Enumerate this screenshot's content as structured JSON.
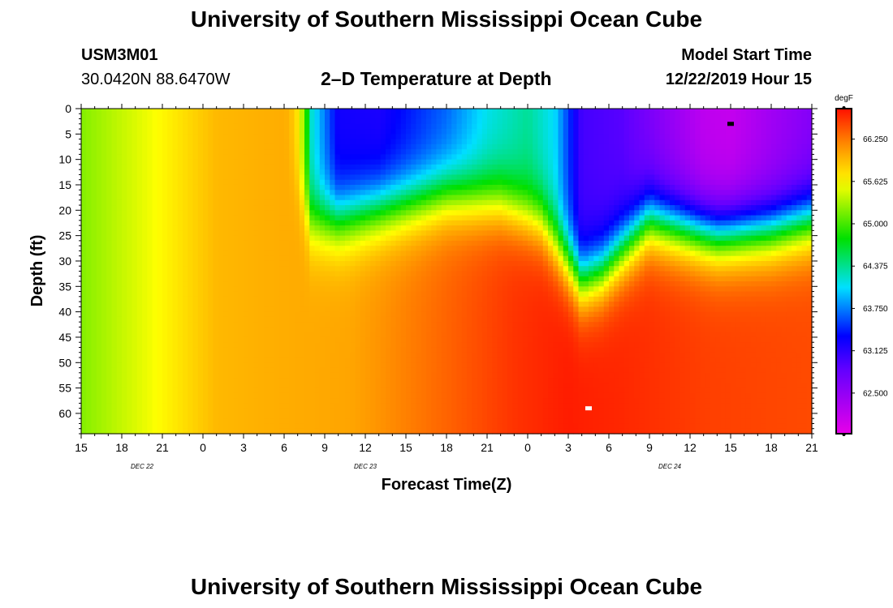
{
  "header": {
    "title_top": "University of Southern Mississippi Ocean Cube",
    "title_bottom": "University of Southern Mississippi Ocean Cube",
    "station_id": "USM3M01",
    "coordinates": "30.0420N 88.6470W",
    "plot_title": "2–D Temperature at Depth",
    "model_start_label": "Model Start Time",
    "model_start_value": "12/22/2019 Hour 15"
  },
  "chart_data": {
    "type": "heatmap",
    "title": "2-D Temperature at Depth",
    "xlabel": "Forecast Time(Z)",
    "ylabel": "Depth (ft)",
    "x_tick_labels": [
      "15",
      "18",
      "21",
      "0",
      "3",
      "6",
      "9",
      "12",
      "15",
      "18",
      "21",
      "0",
      "3",
      "6",
      "9",
      "12",
      "15",
      "18",
      "21"
    ],
    "x_hours": [
      0,
      3,
      6,
      9,
      12,
      15,
      18,
      21,
      24,
      27,
      30,
      33,
      36,
      39,
      42,
      45,
      48,
      51,
      54
    ],
    "date_labels": [
      {
        "text": "DEC 22",
        "hour": 4.5
      },
      {
        "text": "DEC 23",
        "hour": 21
      },
      {
        "text": "DEC 24",
        "hour": 43.5
      }
    ],
    "y_ticks": [
      0,
      5,
      10,
      15,
      20,
      25,
      30,
      35,
      40,
      45,
      50,
      55,
      60
    ],
    "y_range": [
      0,
      64
    ],
    "x_range": [
      0,
      54
    ],
    "colorbar": {
      "unit": "degF",
      "min": 61.9,
      "max": 66.7,
      "tick_labels": [
        "66.250",
        "65.625",
        "65.000",
        "64.375",
        "63.750",
        "63.125",
        "62.500"
      ],
      "tick_values": [
        66.25,
        65.625,
        65.0,
        64.375,
        63.75,
        63.125,
        62.5
      ]
    },
    "markers": [
      {
        "name": "min-marker",
        "hour": 48,
        "depth": 3,
        "color": "#000000"
      },
      {
        "name": "max-marker",
        "hour": 37.5,
        "depth": 59,
        "color": "#ffffff"
      }
    ]
  }
}
